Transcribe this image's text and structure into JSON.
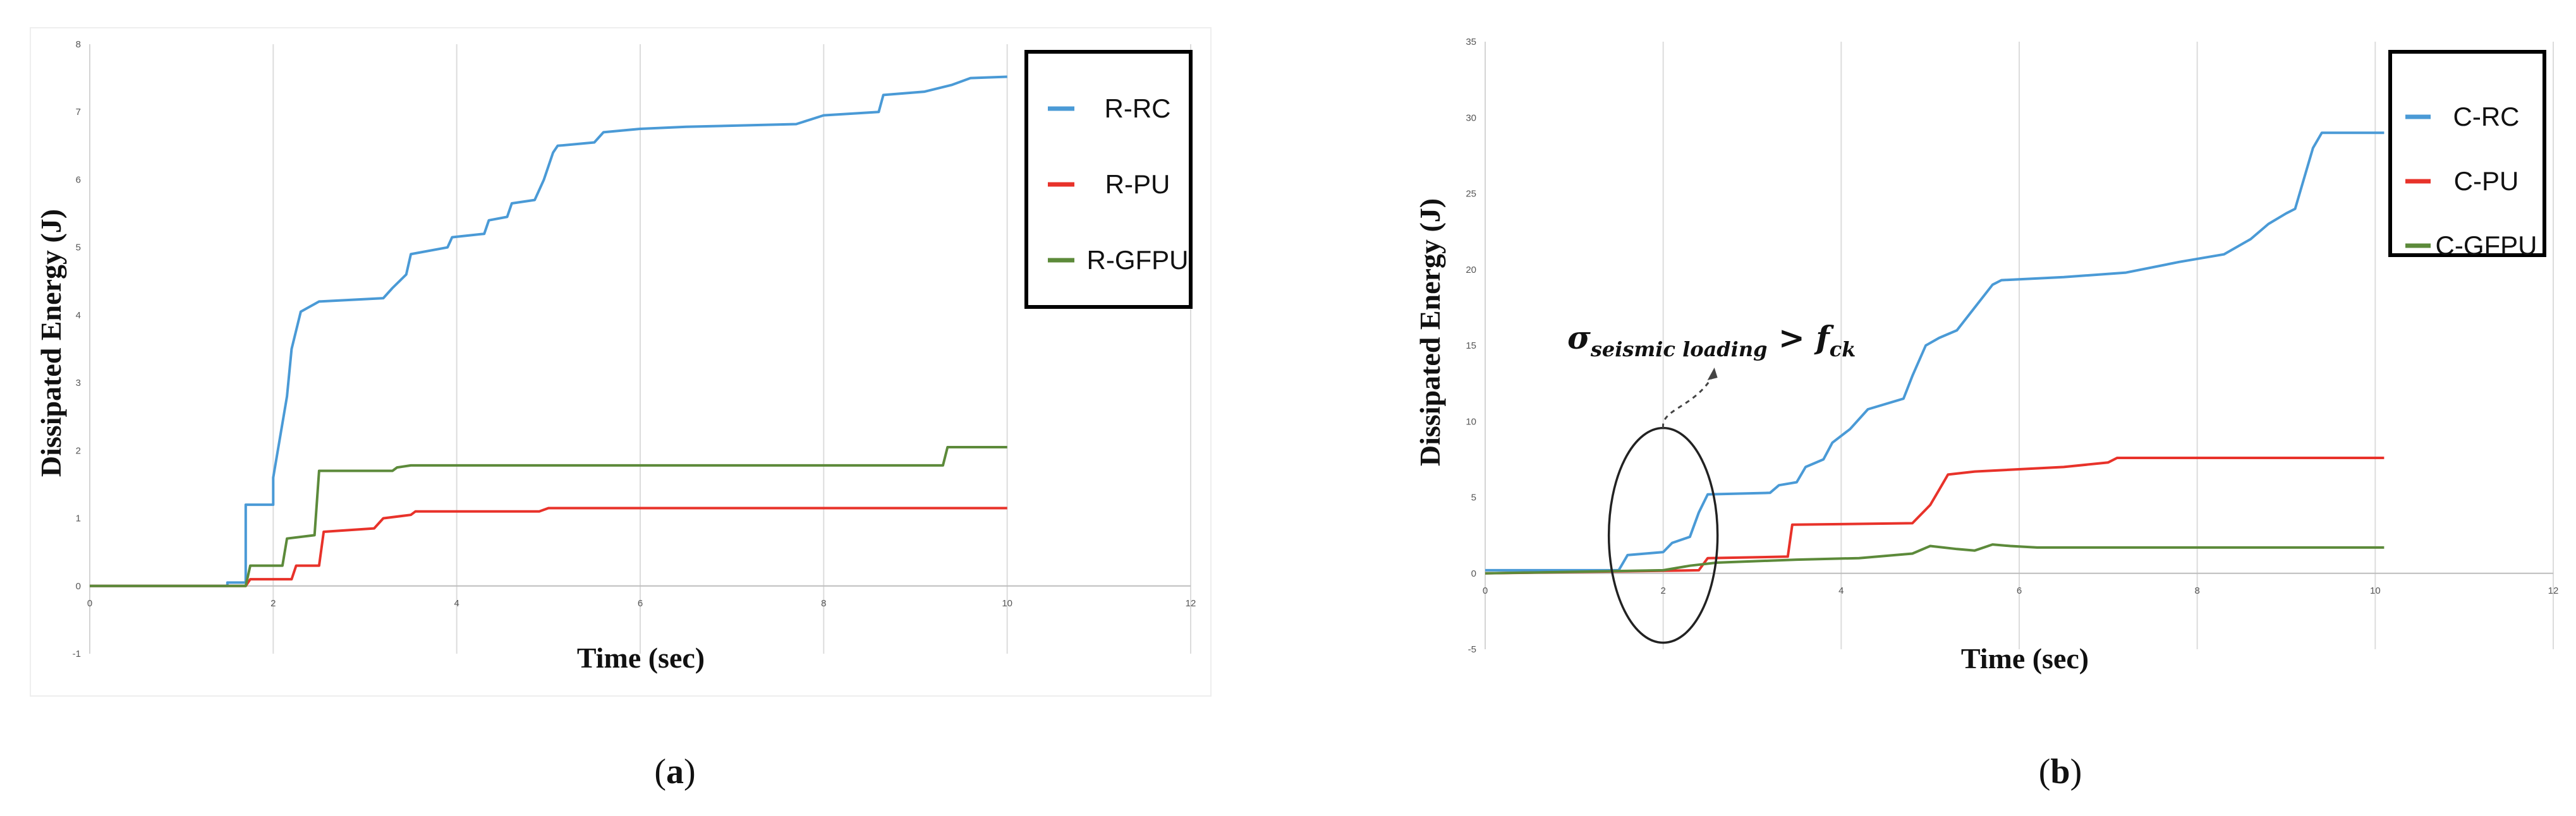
{
  "chart_data": [
    {
      "id": "a",
      "type": "line",
      "caption_open": "(",
      "caption_letter": "a",
      "caption_close": ")",
      "xlabel": "Time (sec)",
      "ylabel": "Dissipated Energy (J)",
      "xlim": [
        0,
        12
      ],
      "ylim": [
        -1,
        8
      ],
      "xticks": [
        0,
        2,
        4,
        6,
        8,
        10,
        12
      ],
      "xtick_labels": [
        "0",
        "2",
        "4",
        "6",
        "8",
        "10",
        "12"
      ],
      "yticks": [
        -1,
        0,
        1,
        2,
        3,
        4,
        5,
        6,
        7,
        8
      ],
      "ytick_labels": [
        "-1",
        "0",
        "1",
        "2",
        "3",
        "4",
        "5",
        "6",
        "7",
        "8"
      ],
      "grid": "vertical",
      "legend_position": "top-right",
      "series": [
        {
          "name": "R-RC",
          "color": "#4a9ad6",
          "points": [
            [
              0,
              0
            ],
            [
              1.5,
              0
            ],
            [
              1.5,
              0.05
            ],
            [
              1.7,
              0.05
            ],
            [
              1.7,
              1.2
            ],
            [
              2.0,
              1.2
            ],
            [
              2.0,
              1.6
            ],
            [
              2.15,
              2.8
            ],
            [
              2.2,
              3.5
            ],
            [
              2.3,
              4.05
            ],
            [
              2.5,
              4.2
            ],
            [
              3.2,
              4.25
            ],
            [
              3.3,
              4.4
            ],
            [
              3.45,
              4.6
            ],
            [
              3.5,
              4.9
            ],
            [
              3.9,
              5.0
            ],
            [
              3.95,
              5.15
            ],
            [
              4.3,
              5.2
            ],
            [
              4.35,
              5.4
            ],
            [
              4.55,
              5.45
            ],
            [
              4.6,
              5.65
            ],
            [
              4.85,
              5.7
            ],
            [
              4.95,
              6.0
            ],
            [
              5.05,
              6.4
            ],
            [
              5.1,
              6.5
            ],
            [
              5.5,
              6.55
            ],
            [
              5.6,
              6.7
            ],
            [
              6.0,
              6.75
            ],
            [
              6.5,
              6.78
            ],
            [
              7.7,
              6.82
            ],
            [
              8.0,
              6.95
            ],
            [
              8.6,
              7.0
            ],
            [
              8.65,
              7.25
            ],
            [
              9.1,
              7.3
            ],
            [
              9.4,
              7.4
            ],
            [
              9.6,
              7.5
            ],
            [
              10.0,
              7.52
            ]
          ]
        },
        {
          "name": "R-PU",
          "color": "#e8322a",
          "points": [
            [
              0,
              0
            ],
            [
              1.7,
              0
            ],
            [
              1.75,
              0.1
            ],
            [
              2.2,
              0.1
            ],
            [
              2.25,
              0.3
            ],
            [
              2.5,
              0.3
            ],
            [
              2.55,
              0.8
            ],
            [
              3.1,
              0.85
            ],
            [
              3.2,
              1.0
            ],
            [
              3.5,
              1.05
            ],
            [
              3.55,
              1.1
            ],
            [
              4.9,
              1.1
            ],
            [
              5.0,
              1.15
            ],
            [
              10.0,
              1.15
            ]
          ]
        },
        {
          "name": "R-GFPU",
          "color": "#5c8a3a",
          "points": [
            [
              0,
              0
            ],
            [
              1.7,
              0
            ],
            [
              1.75,
              0.3
            ],
            [
              2.1,
              0.3
            ],
            [
              2.15,
              0.7
            ],
            [
              2.45,
              0.75
            ],
            [
              2.5,
              1.7
            ],
            [
              3.3,
              1.7
            ],
            [
              3.35,
              1.75
            ],
            [
              3.5,
              1.78
            ],
            [
              9.3,
              1.78
            ],
            [
              9.35,
              2.05
            ],
            [
              10.0,
              2.05
            ]
          ]
        }
      ]
    },
    {
      "id": "b",
      "type": "line",
      "caption_open": "(",
      "caption_letter": "b",
      "caption_close": ")",
      "xlabel": "Time (sec)",
      "ylabel": "Dissipated Energy (J)",
      "xlim": [
        0,
        12
      ],
      "ylim": [
        -5,
        35
      ],
      "xticks": [
        0,
        2,
        4,
        6,
        8,
        10,
        12
      ],
      "xtick_labels": [
        "0",
        "2",
        "4",
        "6",
        "8",
        "10",
        "12"
      ],
      "yticks": [
        -5,
        0,
        5,
        10,
        15,
        20,
        25,
        30,
        35
      ],
      "ytick_labels": [
        "-5",
        "0",
        "5",
        "10",
        "15",
        "20",
        "25",
        "30",
        "35"
      ],
      "grid": "vertical",
      "legend_position": "top-right",
      "annotation": {
        "sigma": "σ",
        "subscript": "seismic loading",
        "operator": " > ",
        "f": "f",
        "f_subscript": "ck",
        "circle_center": [
          2.0,
          2.5
        ]
      },
      "series": [
        {
          "name": "C-RC",
          "color": "#4a9ad6",
          "points": [
            [
              0,
              0.2
            ],
            [
              1.5,
              0.2
            ],
            [
              1.6,
              1.2
            ],
            [
              2.0,
              1.4
            ],
            [
              2.1,
              2.0
            ],
            [
              2.3,
              2.4
            ],
            [
              2.4,
              4.0
            ],
            [
              2.5,
              5.2
            ],
            [
              3.2,
              5.3
            ],
            [
              3.3,
              5.8
            ],
            [
              3.5,
              6.0
            ],
            [
              3.6,
              7.0
            ],
            [
              3.8,
              7.5
            ],
            [
              3.9,
              8.6
            ],
            [
              4.1,
              9.5
            ],
            [
              4.3,
              10.8
            ],
            [
              4.7,
              11.5
            ],
            [
              4.8,
              13.0
            ],
            [
              4.95,
              15.0
            ],
            [
              5.1,
              15.5
            ],
            [
              5.3,
              16.0
            ],
            [
              5.5,
              17.5
            ],
            [
              5.7,
              19.0
            ],
            [
              5.8,
              19.3
            ],
            [
              6.5,
              19.5
            ],
            [
              7.2,
              19.8
            ],
            [
              7.8,
              20.5
            ],
            [
              8.3,
              21.0
            ],
            [
              8.6,
              22.0
            ],
            [
              8.8,
              23.0
            ],
            [
              9.0,
              23.7
            ],
            [
              9.1,
              24.0
            ],
            [
              9.2,
              26.0
            ],
            [
              9.3,
              28.0
            ],
            [
              9.4,
              29.0
            ],
            [
              10.1,
              29.0
            ]
          ]
        },
        {
          "name": "C-PU",
          "color": "#e8322a",
          "points": [
            [
              0,
              0
            ],
            [
              2.4,
              0.2
            ],
            [
              2.5,
              1.0
            ],
            [
              3.4,
              1.1
            ],
            [
              3.45,
              3.2
            ],
            [
              4.8,
              3.3
            ],
            [
              5.0,
              4.5
            ],
            [
              5.1,
              5.5
            ],
            [
              5.2,
              6.5
            ],
            [
              5.5,
              6.7
            ],
            [
              6.5,
              7.0
            ],
            [
              7.0,
              7.3
            ],
            [
              7.1,
              7.6
            ],
            [
              10.1,
              7.6
            ]
          ]
        },
        {
          "name": "C-GFPU",
          "color": "#5c8a3a",
          "points": [
            [
              0,
              0
            ],
            [
              2.0,
              0.2
            ],
            [
              2.3,
              0.5
            ],
            [
              2.6,
              0.7
            ],
            [
              3.5,
              0.9
            ],
            [
              4.2,
              1.0
            ],
            [
              4.8,
              1.3
            ],
            [
              5.0,
              1.8
            ],
            [
              5.3,
              1.6
            ],
            [
              5.5,
              1.5
            ],
            [
              5.7,
              1.9
            ],
            [
              5.9,
              1.8
            ],
            [
              6.2,
              1.7
            ],
            [
              10.1,
              1.7
            ]
          ]
        }
      ]
    }
  ]
}
